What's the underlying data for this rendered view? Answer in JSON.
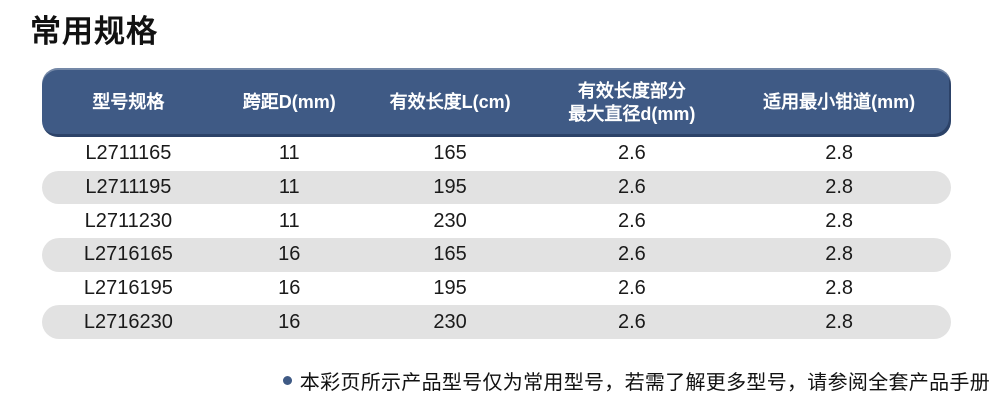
{
  "page": {
    "title": "常用规格"
  },
  "table": {
    "headers": [
      "型号规格",
      "跨距D(mm)",
      "有效长度L(cm)",
      "有效长度部分\n最大直径d(mm)",
      "适用最小钳道(mm)"
    ],
    "rows": [
      [
        "L2711165",
        "11",
        "165",
        "2.6",
        "2.8"
      ],
      [
        "L2711195",
        "11",
        "195",
        "2.6",
        "2.8"
      ],
      [
        "L2711230",
        "11",
        "230",
        "2.6",
        "2.8"
      ],
      [
        "L2716165",
        "16",
        "165",
        "2.6",
        "2.8"
      ],
      [
        "L2716195",
        "16",
        "195",
        "2.6",
        "2.8"
      ],
      [
        "L2716230",
        "16",
        "230",
        "2.6",
        "2.8"
      ]
    ]
  },
  "footnote": {
    "bullet_icon": "dot-icon",
    "text": "本彩页所示产品型号仅为常用型号，若需了解更多型号，请参阅全套产品手册"
  },
  "colors": {
    "header_bg": "#3f5a85",
    "header_text": "#ffffff",
    "row_alt_bg": "#e2e2e2",
    "text": "#1a1a1a",
    "bullet": "#3f5a85"
  }
}
